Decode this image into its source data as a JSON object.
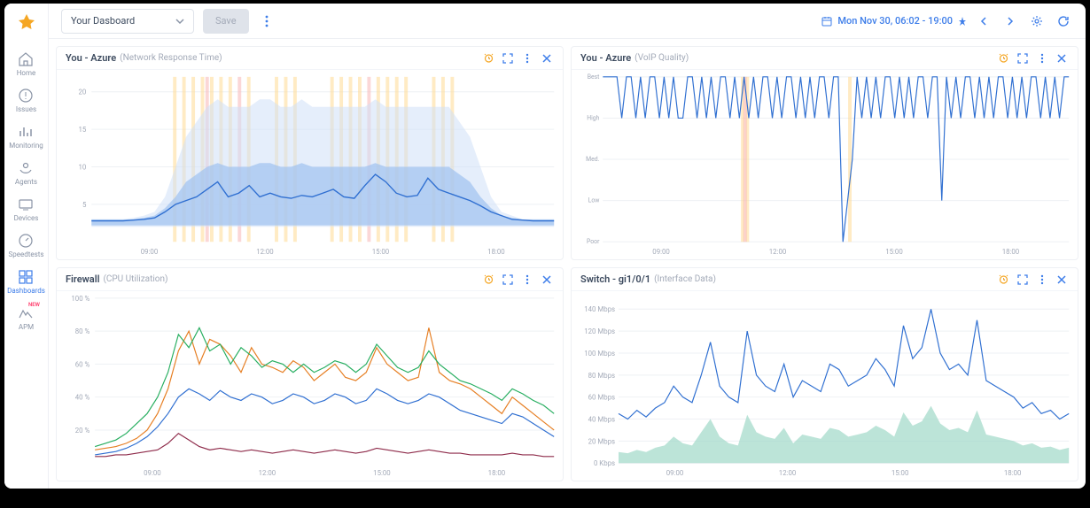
{
  "sidenav": {
    "items": [
      {
        "name": "home",
        "label": "Home"
      },
      {
        "name": "issues",
        "label": "Issues"
      },
      {
        "name": "monitoring",
        "label": "Monitoring"
      },
      {
        "name": "agents",
        "label": "Agents"
      },
      {
        "name": "devices",
        "label": "Devices"
      },
      {
        "name": "speedtests",
        "label": "Speedtests"
      },
      {
        "name": "dashboards",
        "label": "Dashboards",
        "active": true
      },
      {
        "name": "apm",
        "label": "APM",
        "badge": "NEW"
      }
    ]
  },
  "topbar": {
    "dashboard_selected": "Your Dasboard",
    "save_label": "Save",
    "date_range": "Mon Nov 30, 06:02 - 19:00"
  },
  "panels": {
    "p0": {
      "title": "You - Azure",
      "subtitle": "(Network Response Time)",
      "y_ticks": [
        5,
        10,
        15,
        20
      ],
      "x_ticks": [
        "09:00",
        "12:00",
        "15:00",
        "18:00"
      ],
      "band_color": "#cfe0f7",
      "band_color_dark": "#9fc2ef",
      "line_color": "#2f6fd1",
      "event_color_1": "#ffd78a",
      "event_color_2": "#f7b0b0",
      "grid_color": "#eef0f4",
      "ylim": [
        0,
        22
      ],
      "band_outer": [
        3,
        3,
        3,
        3,
        3.2,
        3.5,
        4,
        6,
        10,
        14,
        16,
        18,
        19,
        18,
        18,
        18,
        19,
        19,
        18,
        18,
        19,
        18,
        18,
        18,
        18,
        18,
        18,
        19,
        18,
        18,
        18,
        18,
        18,
        18,
        18,
        16,
        14,
        10,
        6,
        4,
        3.5,
        3,
        3,
        3,
        3
      ],
      "band_outer_low": [
        2,
        2,
        2,
        2,
        2,
        2,
        2,
        2,
        2,
        2,
        2,
        2,
        2,
        2,
        2,
        2,
        2,
        2,
        2,
        2,
        2,
        2,
        2,
        2,
        2,
        2,
        2,
        2,
        2,
        2,
        2,
        2,
        2,
        2,
        2,
        2,
        2,
        2,
        2,
        2,
        2,
        2,
        2,
        2,
        2
      ],
      "band_inner": [
        3,
        3,
        3,
        3,
        3,
        3.2,
        3.5,
        4.5,
        6,
        8,
        9,
        10,
        10.5,
        10,
        10,
        10,
        10.5,
        10.5,
        10,
        10,
        10.5,
        10,
        10,
        10,
        10,
        10,
        10,
        10.5,
        10,
        10,
        10,
        10,
        10,
        10,
        10,
        9,
        8,
        6,
        4.5,
        3.5,
        3.2,
        3,
        3,
        3,
        3
      ],
      "band_inner_low": [
        2.2,
        2.2,
        2.2,
        2.2,
        2.2,
        2.2,
        2.2,
        2.2,
        2.2,
        2.2,
        2.2,
        2.2,
        2.2,
        2.2,
        2.2,
        2.2,
        2.2,
        2.2,
        2.2,
        2.2,
        2.2,
        2.2,
        2.2,
        2.2,
        2.2,
        2.2,
        2.2,
        2.2,
        2.2,
        2.2,
        2.2,
        2.2,
        2.2,
        2.2,
        2.2,
        2.2,
        2.2,
        2.2,
        2.2,
        2.2,
        2.2,
        2.2,
        2.2,
        2.2,
        2.2
      ],
      "line": [
        2.8,
        2.8,
        2.8,
        2.8,
        2.9,
        3,
        3.2,
        4,
        5,
        5.5,
        6,
        7,
        8,
        6,
        6.5,
        7.5,
        6,
        6.5,
        6,
        5.8,
        6.2,
        6,
        6.5,
        7,
        6,
        5.8,
        7.5,
        9,
        8,
        6.5,
        6,
        6.2,
        8.5,
        7,
        6.5,
        6,
        5.5,
        4.8,
        4,
        3.5,
        3,
        2.9,
        2.8,
        2.8,
        2.8
      ],
      "events_1": [
        0.18,
        0.2,
        0.22,
        0.24,
        0.26,
        0.28,
        0.3,
        0.34,
        0.4,
        0.42,
        0.44,
        0.52,
        0.54,
        0.56,
        0.58,
        0.62,
        0.64,
        0.66,
        0.68,
        0.74,
        0.76,
        0.78
      ],
      "events_2": [
        0.25,
        0.32,
        0.6
      ]
    },
    "p1": {
      "title": "You - Azure",
      "subtitle": "(VoIP Quality)",
      "y_cats": [
        "Best",
        "High",
        "Med.",
        "Low",
        "Poor"
      ],
      "x_ticks": [
        "09:00",
        "12:00",
        "15:00",
        "18:00"
      ],
      "line_color": "#2f6fd1",
      "grid_color": "#eef0f4",
      "event_color_1": "#ffd78a",
      "event_color_2": "#f7b0b0",
      "events_1": [
        0.3,
        0.31,
        0.53
      ],
      "events_2": [
        0.305
      ],
      "values": [
        0,
        0,
        0,
        0,
        1,
        0,
        0,
        1,
        0,
        1,
        0,
        0,
        1,
        0,
        1,
        0,
        1,
        1,
        0,
        0,
        1,
        0,
        1,
        0,
        1,
        0,
        0,
        1,
        0,
        1,
        0,
        1,
        0,
        1,
        0,
        0,
        1,
        0,
        1,
        0,
        0,
        1,
        0,
        1,
        0,
        1,
        0,
        0,
        1,
        0,
        0,
        4,
        3,
        2,
        0,
        1,
        0,
        1,
        0,
        1,
        0,
        0,
        1,
        0,
        1,
        0,
        1,
        0,
        0,
        1,
        0,
        0,
        3,
        0,
        1,
        0,
        1,
        0,
        0,
        1,
        0,
        1,
        0,
        1,
        0,
        0,
        1,
        0,
        1,
        0,
        1,
        0,
        0,
        1,
        0,
        1,
        0,
        1,
        0,
        0
      ]
    },
    "p2": {
      "title": "Firewall",
      "subtitle": "(CPU Utilization)",
      "y_ticks": [
        "20 %",
        "40 %",
        "60 %",
        "80 %",
        "100 %"
      ],
      "y_vals": [
        20,
        40,
        60,
        80,
        100
      ],
      "x_ticks": [
        "09:00",
        "12:00",
        "15:00",
        "18:00"
      ],
      "grid_color": "#eef0f4",
      "colors": [
        "#e67e22",
        "#27ae60",
        "#2f6fd1",
        "#8e2b4a"
      ],
      "ylim": [
        0,
        100
      ],
      "series": [
        [
          8,
          9,
          10,
          12,
          15,
          20,
          30,
          45,
          68,
          80,
          60,
          75,
          72,
          65,
          55,
          70,
          60,
          58,
          55,
          62,
          58,
          50,
          55,
          60,
          52,
          50,
          55,
          70,
          60,
          55,
          50,
          52,
          82,
          55,
          50,
          48,
          45,
          40,
          35,
          30,
          40,
          35,
          30,
          25,
          20
        ],
        [
          10,
          12,
          14,
          18,
          24,
          30,
          40,
          55,
          78,
          70,
          82,
          68,
          72,
          60,
          70,
          65,
          58,
          62,
          60,
          55,
          60,
          55,
          58,
          62,
          60,
          55,
          60,
          72,
          65,
          58,
          55,
          58,
          68,
          60,
          55,
          50,
          48,
          45,
          42,
          38,
          45,
          42,
          38,
          35,
          30
        ],
        [
          5,
          6,
          7,
          9,
          12,
          16,
          22,
          30,
          40,
          45,
          42,
          38,
          44,
          40,
          38,
          42,
          40,
          36,
          38,
          42,
          40,
          36,
          38,
          42,
          40,
          36,
          38,
          45,
          42,
          38,
          36,
          38,
          42,
          40,
          36,
          32,
          30,
          28,
          26,
          24,
          30,
          28,
          24,
          20,
          16
        ],
        [
          4,
          4,
          5,
          5,
          6,
          7,
          8,
          12,
          18,
          14,
          10,
          8,
          9,
          8,
          7,
          8,
          7,
          6,
          7,
          8,
          7,
          6,
          7,
          8,
          7,
          6,
          7,
          9,
          8,
          7,
          6,
          7,
          8,
          7,
          6,
          6,
          5,
          5,
          5,
          5,
          6,
          5,
          5,
          4,
          4
        ]
      ]
    },
    "p3": {
      "title": "Switch - gi1/0/1",
      "subtitle": "(Interface Data)",
      "y_ticks": [
        "0 Kbps",
        "20 Mbps",
        "40 Mbps",
        "60 Mbps",
        "80 Mbps",
        "100 Mbps",
        "120 Mbps",
        "140 Mbps"
      ],
      "y_vals": [
        0,
        20,
        40,
        60,
        80,
        100,
        120,
        140
      ],
      "x_ticks": [
        "09:00",
        "12:00",
        "15:00",
        "18:00"
      ],
      "line_color": "#2f6fd1",
      "area_color": "#9fd9c8",
      "grid_color": "#eef0f4",
      "ylim": [
        0,
        150
      ],
      "line": [
        45,
        40,
        48,
        42,
        50,
        55,
        70,
        60,
        55,
        80,
        110,
        70,
        60,
        55,
        120,
        80,
        70,
        65,
        90,
        60,
        75,
        70,
        65,
        90,
        85,
        70,
        75,
        80,
        95,
        85,
        70,
        125,
        95,
        105,
        140,
        100,
        85,
        90,
        80,
        130,
        75,
        70,
        65,
        60,
        50,
        55,
        45,
        48,
        40,
        45
      ],
      "area": [
        10,
        9,
        12,
        10,
        14,
        16,
        24,
        18,
        16,
        28,
        40,
        24,
        18,
        16,
        44,
        28,
        24,
        22,
        32,
        18,
        26,
        24,
        22,
        32,
        30,
        24,
        26,
        28,
        34,
        30,
        24,
        46,
        34,
        38,
        52,
        36,
        30,
        32,
        28,
        48,
        26,
        24,
        22,
        20,
        16,
        18,
        14,
        15,
        12,
        14
      ]
    }
  },
  "colors": {
    "accent": "#3d7de9",
    "muted": "#a3aab8",
    "text": "#3c4a5e"
  }
}
